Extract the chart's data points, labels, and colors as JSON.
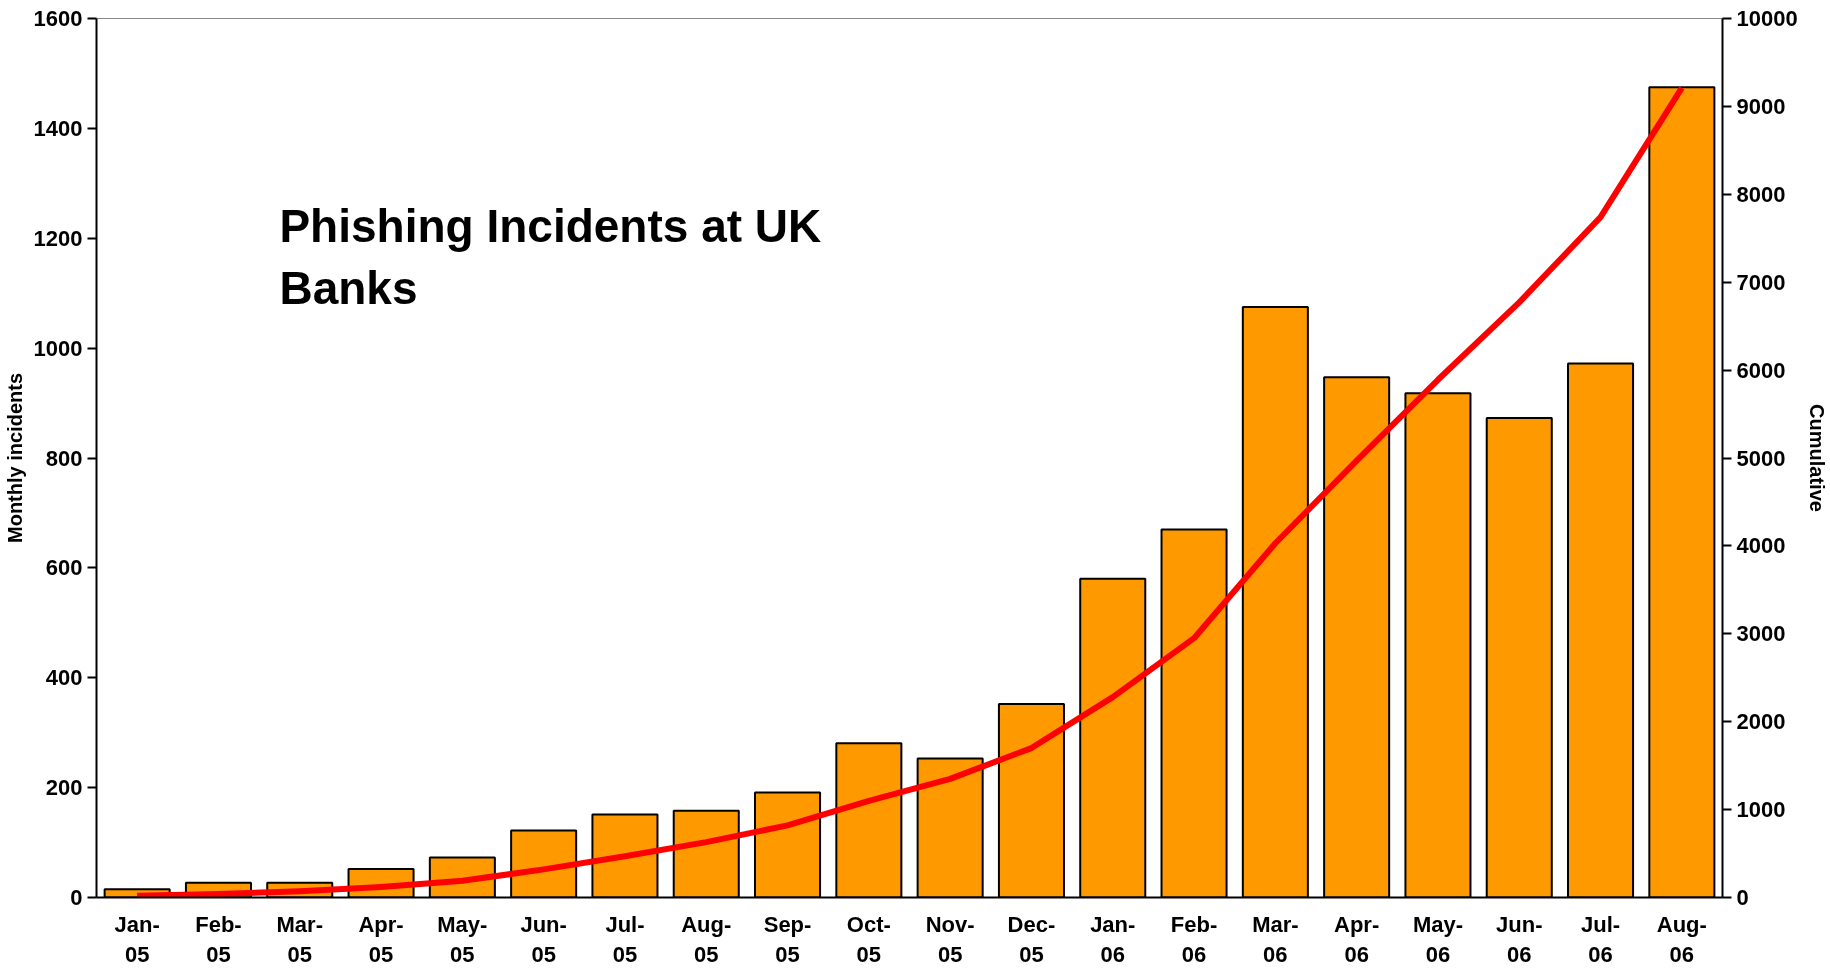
{
  "chart_data": {
    "type": "bar",
    "title": "Phishing Incidents at UK Banks",
    "ylabel": "Monthly incidents",
    "y2label": "Cumulative",
    "categories": [
      "Jan-05",
      "Feb-05",
      "Mar-05",
      "Apr-05",
      "May-05",
      "Jun-05",
      "Jul-05",
      "Aug-05",
      "Sep-05",
      "Oct-05",
      "Nov-05",
      "Dec-05",
      "Jan-06",
      "Feb-06",
      "Mar-06",
      "Apr-06",
      "May-06",
      "Jun-06",
      "Jul-06",
      "Aug-06"
    ],
    "series": [
      {
        "color": "#ff9900",
        "values": [
          15,
          27,
          27,
          52,
          73,
          122,
          151,
          158,
          191,
          281,
          253,
          352,
          580,
          670,
          1075,
          947,
          918,
          873,
          972,
          1475
        ]
      },
      {
        "type": "line",
        "axis": "y2",
        "color": "#ff0000",
        "values": [
          20,
          40,
          70,
          120,
          190,
          320,
          470,
          630,
          820,
          1100,
          1350,
          1700,
          2280,
          2950,
          4030,
          4970,
          5890,
          6770,
          7740,
          9210
        ]
      }
    ],
    "ylim": [
      0,
      1600
    ],
    "yticks": [
      0,
      200,
      400,
      600,
      800,
      1000,
      1200,
      1400,
      1600
    ],
    "y2lim": [
      0,
      10000
    ],
    "y2ticks": [
      0,
      1000,
      2000,
      3000,
      4000,
      5000,
      6000,
      7000,
      8000,
      9000,
      10000
    ],
    "grid": false
  }
}
